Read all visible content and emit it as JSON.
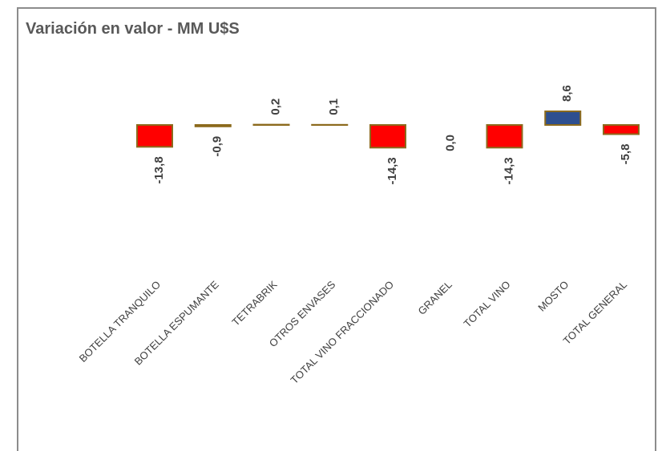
{
  "chart_data": {
    "type": "bar",
    "title": "Variación en valor - MM U$S",
    "categories": [
      "BOTELLA TRANQUILO",
      "BOTELLA ESPUMANTE",
      "TETRABRIK",
      "OTROS ENVASES",
      "TOTAL VINO FRACCIONADO",
      "GRANEL",
      "TOTAL VINO",
      "MOSTO",
      "TOTAL GENERAL"
    ],
    "values": [
      -13.8,
      -0.9,
      0.2,
      0.1,
      -14.3,
      0.0,
      -14.3,
      8.6,
      -5.8
    ],
    "value_labels": [
      "-13,8",
      "-0,9",
      "0,2",
      "0,1",
      "-14,3",
      "0,0",
      "-14,3",
      "8,6",
      "-5,8"
    ],
    "colors": [
      "#ff0000",
      "#ff0000",
      "#ff0000",
      "#ff0000",
      "#ff0000",
      "#ff0000",
      "#ff0000",
      "#2e4f8f",
      "#ff0000"
    ],
    "border_color": "#8c6a1c"
  }
}
